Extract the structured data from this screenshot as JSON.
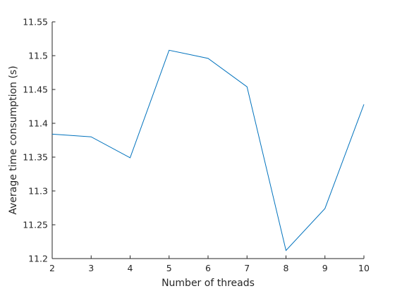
{
  "chart_data": {
    "type": "line",
    "title": "",
    "xlabel": "Number of threads",
    "ylabel": "Average time consumption (s)",
    "xlim": [
      2,
      10
    ],
    "ylim": [
      11.2,
      11.55
    ],
    "xticks": [
      2,
      3,
      4,
      5,
      6,
      7,
      8,
      9,
      10
    ],
    "xtick_labels": [
      "2",
      "3",
      "4",
      "5",
      "6",
      "7",
      "8",
      "9",
      "10"
    ],
    "yticks": [
      11.2,
      11.25,
      11.3,
      11.35,
      11.4,
      11.45,
      11.5,
      11.55
    ],
    "ytick_labels": [
      "11.2",
      "11.25",
      "11.3",
      "11.35",
      "11.4",
      "11.45",
      "11.5",
      "11.55"
    ],
    "grid": false,
    "series": [
      {
        "color": "#0072bd",
        "x": [
          2,
          3,
          4,
          5,
          6,
          7,
          8,
          9,
          10
        ],
        "y": [
          11.384,
          11.38,
          11.349,
          11.508,
          11.496,
          11.454,
          11.212,
          11.274,
          11.428
        ]
      }
    ]
  }
}
